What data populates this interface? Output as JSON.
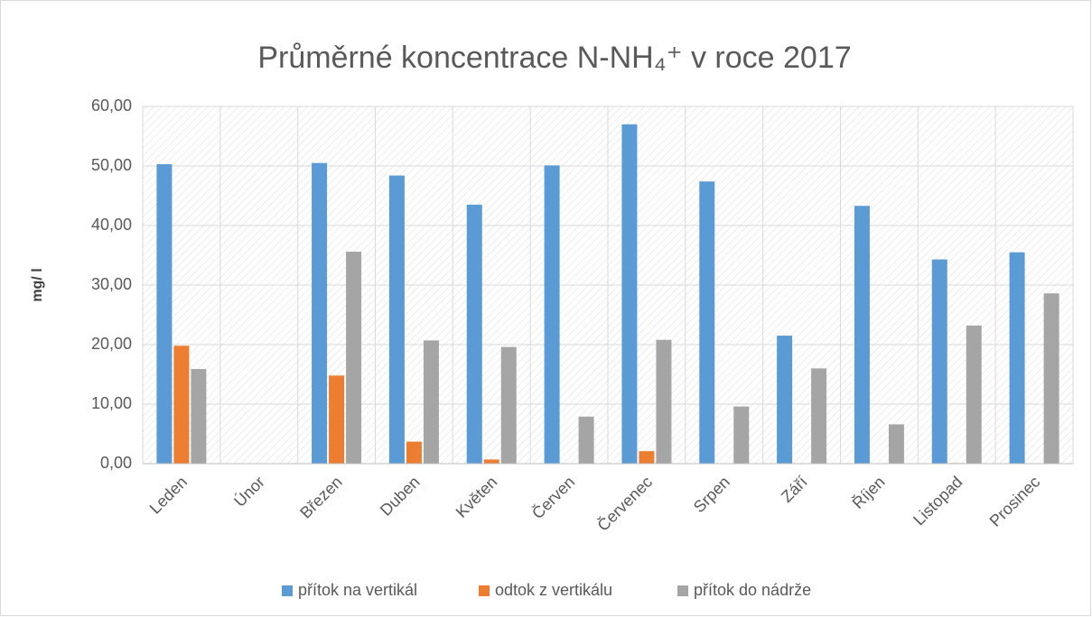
{
  "chart_data": {
    "type": "bar",
    "title": "Průměrné koncentrace N-NH₄⁺ v roce 2017",
    "y_label": "mg/ l",
    "categories": [
      "Leden",
      "Únor",
      "Březen",
      "Duben",
      "Květen",
      "Červen",
      "Červenec",
      "Srpen",
      "Září",
      "Říjen",
      "Listopad",
      "Prosinec"
    ],
    "series": [
      {
        "name": "přítok na vertikál",
        "color": "#5b9bd5",
        "values": [
          50.3,
          null,
          50.5,
          48.4,
          43.5,
          50.1,
          57.0,
          47.4,
          21.5,
          43.3,
          34.3,
          35.5
        ]
      },
      {
        "name": "odtok z vertikálu",
        "color": "#ed7d31",
        "values": [
          19.8,
          null,
          14.8,
          3.7,
          0.7,
          null,
          2.1,
          null,
          null,
          null,
          0.1,
          null
        ]
      },
      {
        "name": "přítok do nádrže",
        "color": "#a5a5a5",
        "values": [
          15.9,
          null,
          35.6,
          20.7,
          19.6,
          7.9,
          20.8,
          9.6,
          16.0,
          6.6,
          23.2,
          28.6
        ]
      }
    ],
    "ylim": [
      0,
      60
    ],
    "yticks": [
      {
        "value": 0,
        "label": "0,00"
      },
      {
        "value": 10,
        "label": "10,00"
      },
      {
        "value": 20,
        "label": "20,00"
      },
      {
        "value": 30,
        "label": "30,00"
      },
      {
        "value": 40,
        "label": "40,00"
      },
      {
        "value": 50,
        "label": "50,00"
      },
      {
        "value": 60,
        "label": "60,00"
      }
    ],
    "grid": true,
    "legend": "bottom"
  }
}
